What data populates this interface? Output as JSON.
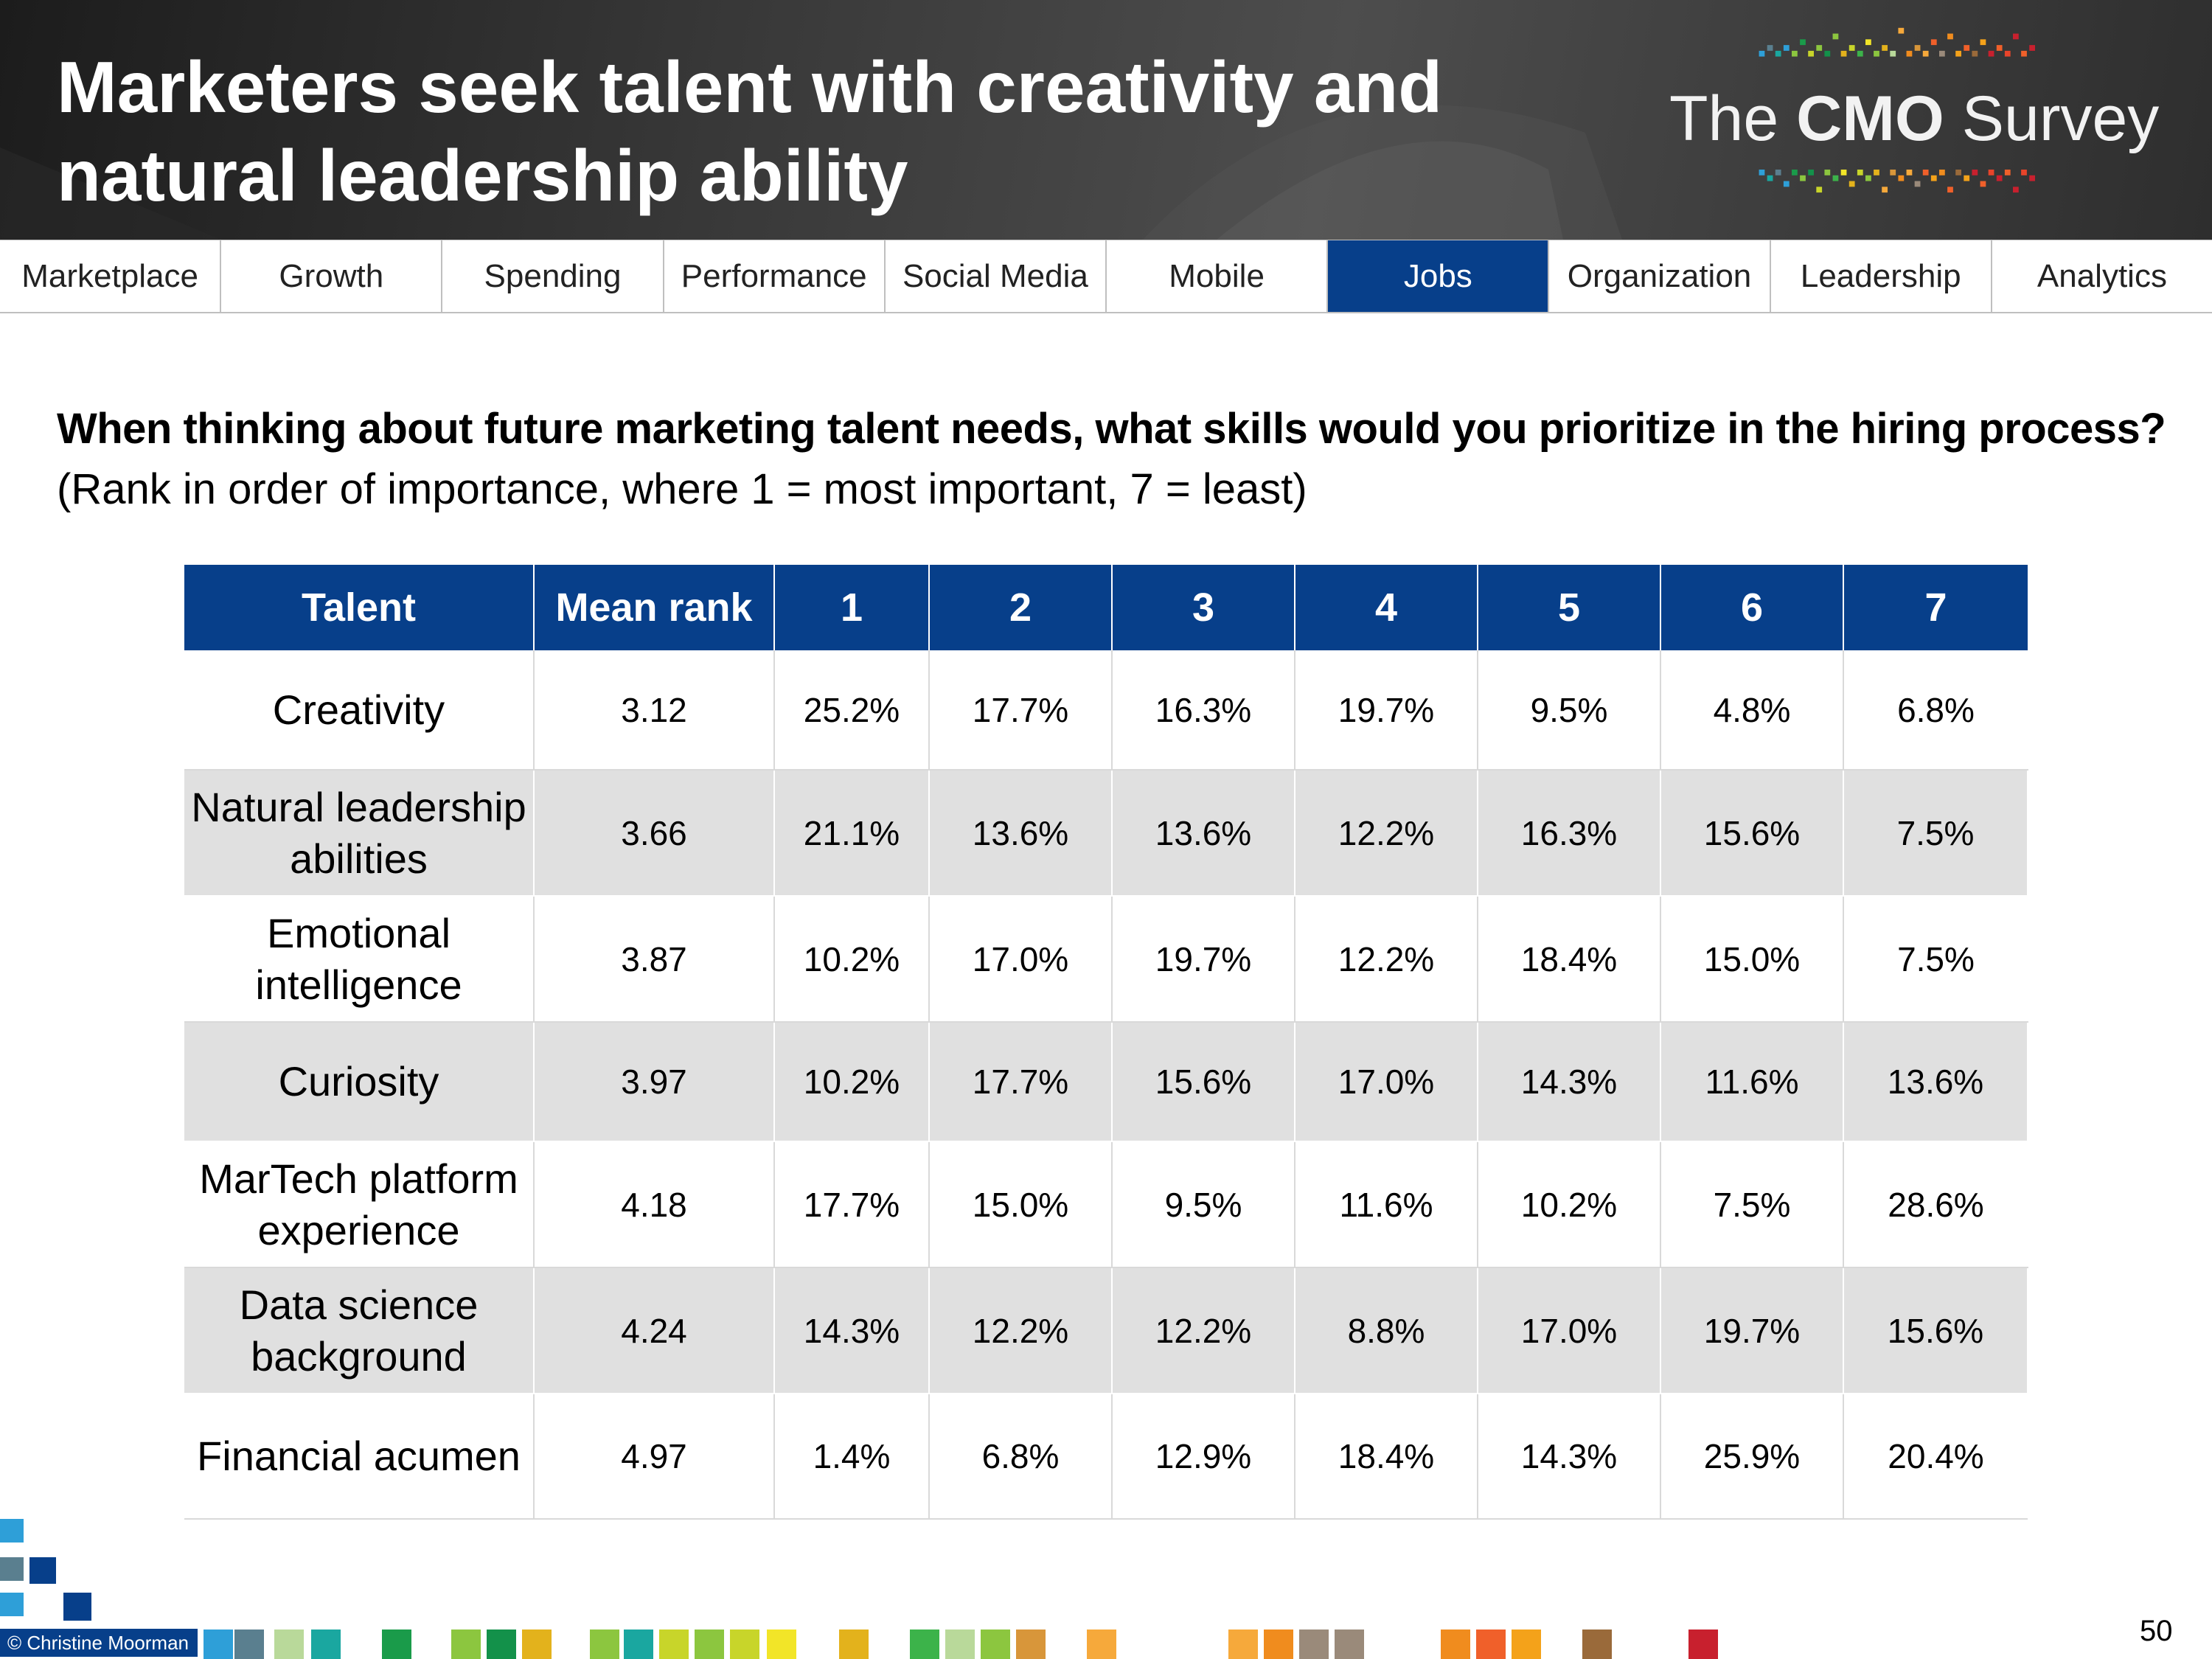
{
  "header": {
    "title": "Marketers seek talent with creativity and natural leadership ability",
    "logo": {
      "prefix": "The ",
      "bold": "CMO",
      "suffix": " Survey"
    }
  },
  "nav": {
    "tabs": [
      "Marketplace",
      "Growth",
      "Spending",
      "Performance",
      "Social Media",
      "Mobile",
      "Jobs",
      "Organization",
      "Leadership",
      "Analytics"
    ],
    "active": "Jobs"
  },
  "question": {
    "text": "When thinking about future marketing talent needs, what skills would you prioritize in the hiring process?",
    "instruction": "(Rank in order of importance, where 1 = most important, 7 = least)"
  },
  "table": {
    "headers": [
      "Talent",
      "Mean rank",
      "1",
      "2",
      "3",
      "4",
      "5",
      "6",
      "7"
    ],
    "rows": [
      [
        "Creativity",
        "3.12",
        "25.2%",
        "17.7%",
        "16.3%",
        "19.7%",
        "9.5%",
        "4.8%",
        "6.8%"
      ],
      [
        "Natural leadership abilities",
        "3.66",
        "21.1%",
        "13.6%",
        "13.6%",
        "12.2%",
        "16.3%",
        "15.6%",
        "7.5%"
      ],
      [
        "Emotional intelligence",
        "3.87",
        "10.2%",
        "17.0%",
        "19.7%",
        "12.2%",
        "18.4%",
        "15.0%",
        "7.5%"
      ],
      [
        "Curiosity",
        "3.97",
        "10.2%",
        "17.7%",
        "15.6%",
        "17.0%",
        "14.3%",
        "11.6%",
        "13.6%"
      ],
      [
        "MarTech platform experience",
        "4.18",
        "17.7%",
        "15.0%",
        "9.5%",
        "11.6%",
        "10.2%",
        "7.5%",
        "28.6%"
      ],
      [
        "Data science background",
        "4.24",
        "14.3%",
        "12.2%",
        "12.2%",
        "8.8%",
        "17.0%",
        "19.7%",
        "15.6%"
      ],
      [
        "Financial acumen",
        "4.97",
        "1.4%",
        "6.8%",
        "12.9%",
        "18.4%",
        "14.3%",
        "25.9%",
        "20.4%"
      ]
    ]
  },
  "footer": {
    "copyright": "© Christine Moorman",
    "page_number": "50"
  },
  "colors": {
    "brand_blue": "#073f8a",
    "row_alt": "#e0e0e0",
    "footer_squares": [
      "#2e9fd8",
      "#5a7f8f",
      "#b9d99a",
      "#1aa7a0",
      "#1a9b4a",
      "#8cc63f",
      "#13914a",
      "#e3b21c",
      "#8cc63f",
      "#1aa7a0",
      "#c8d52a",
      "#8cc63f",
      "#c8d52a",
      "#f2e528",
      "#e3b21c",
      "#3cb34a",
      "#b9d99a",
      "#8cc63f",
      "#d8963a",
      "#f6a93b",
      "#f6a93b",
      "#f08c1e",
      "#9a8a7a",
      "#9a8a7a",
      "#f08c1e",
      "#f0602a",
      "#f4a21a",
      "#9a6a3a",
      "#c8202e"
    ]
  }
}
